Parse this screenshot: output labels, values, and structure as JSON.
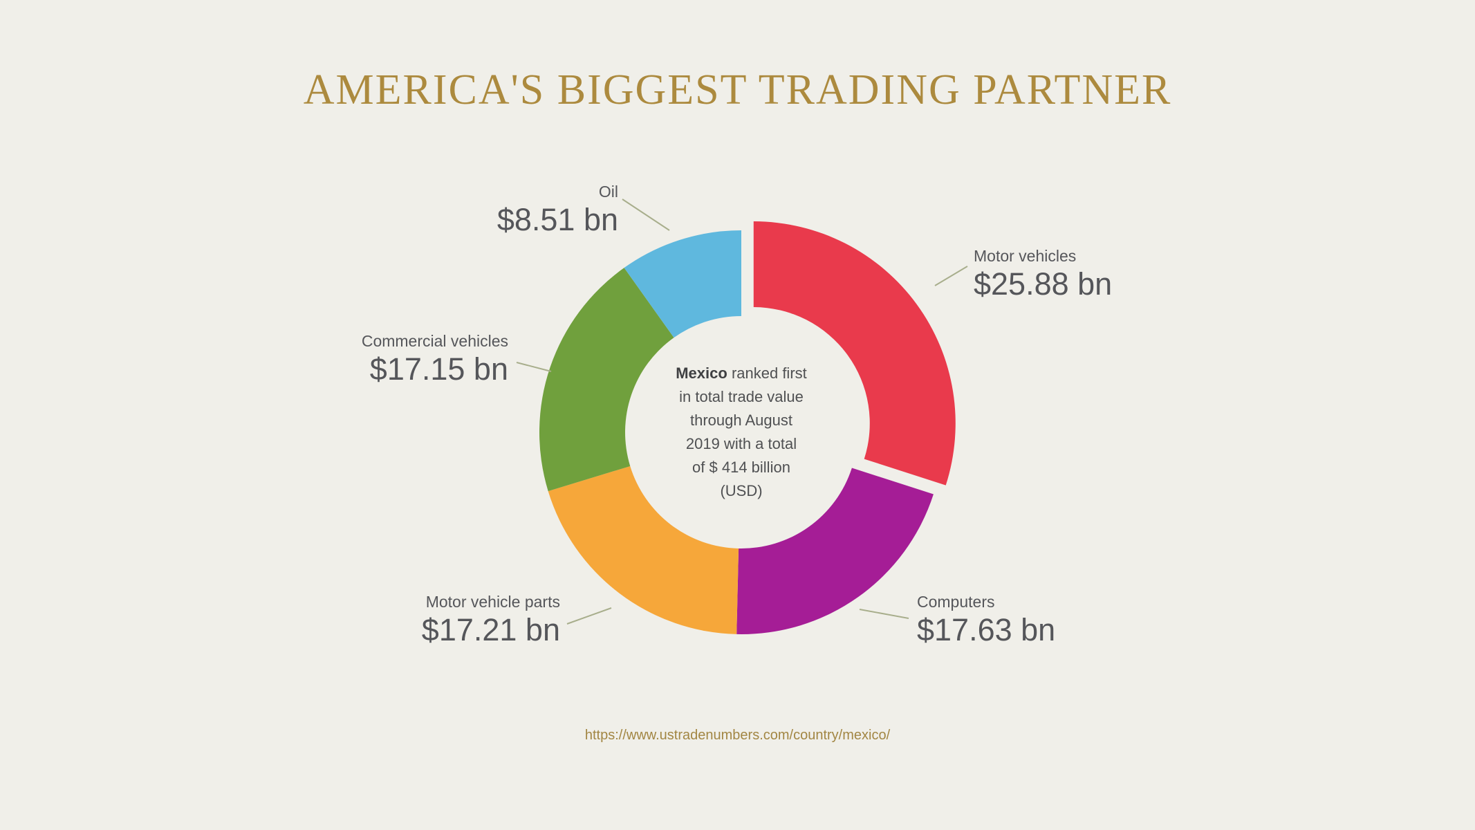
{
  "page": {
    "title": "AMERICA'S BIGGEST TRADING PARTNER",
    "source_url": "https://www.ustradenumbers.com/country/mexico/"
  },
  "chart_data": {
    "type": "pie",
    "subtype": "donut",
    "title": "AMERICA'S BIGGEST TRADING PARTNER",
    "unit": "billion USD",
    "direction": "clockwise",
    "start_angle_deg": 0,
    "legend_position": "callout-labels",
    "segments": [
      {
        "label": "Motor vehicles",
        "value": 25.88,
        "display": "$25.88 bn",
        "color": "#e93a4c",
        "exploded": true
      },
      {
        "label": "Computers",
        "value": 17.63,
        "display": "$17.63 bn",
        "color": "#a51d96",
        "exploded": false
      },
      {
        "label": "Motor vehicle parts",
        "value": 17.21,
        "display": "$17.21 bn",
        "color": "#f6a73a",
        "exploded": false
      },
      {
        "label": "Commercial vehicles",
        "value": 17.15,
        "display": "$17.15 bn",
        "color": "#70a03d",
        "exploded": false
      },
      {
        "label": "Oil",
        "value": 8.51,
        "display": "$8.51 bn",
        "color": "#5fb8de",
        "exploded": false
      }
    ],
    "center_text": {
      "line1_bold": "Mexico",
      "line1_rest": " ranked first",
      "line2": "in total trade value",
      "line3": "through August",
      "line4": "2019  with a total",
      "line5": "of $ 414 billion",
      "line6": "(USD)"
    },
    "source": "https://www.ustradenumbers.com/country/mexico/"
  }
}
